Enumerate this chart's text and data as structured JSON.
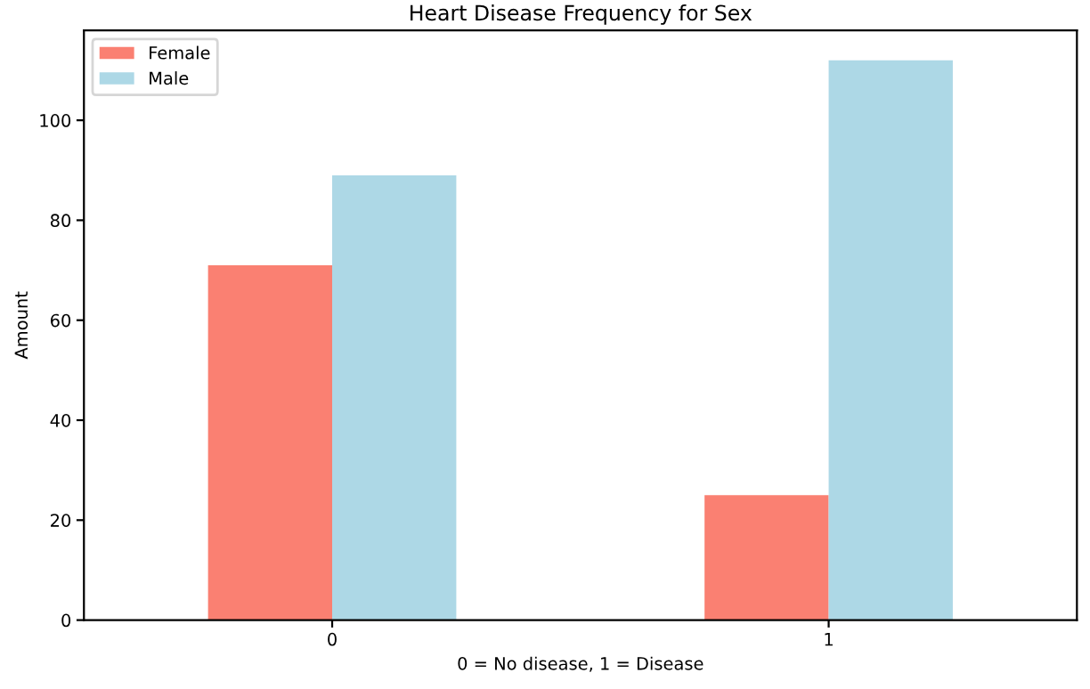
{
  "chart_data": {
    "type": "bar",
    "title": "Heart Disease Frequency for Sex",
    "xlabel": "0 = No disease, 1 = Disease",
    "ylabel": "Amount",
    "categories": [
      "0",
      "1"
    ],
    "series": [
      {
        "name": "Female",
        "color": "#fa8072",
        "values": [
          71,
          25
        ]
      },
      {
        "name": "Male",
        "color": "#add8e6",
        "values": [
          89,
          112
        ]
      }
    ],
    "ylim": [
      0,
      118
    ],
    "yticks": [
      0,
      20,
      40,
      60,
      80,
      100
    ],
    "legend": "top left",
    "grid": false
  }
}
